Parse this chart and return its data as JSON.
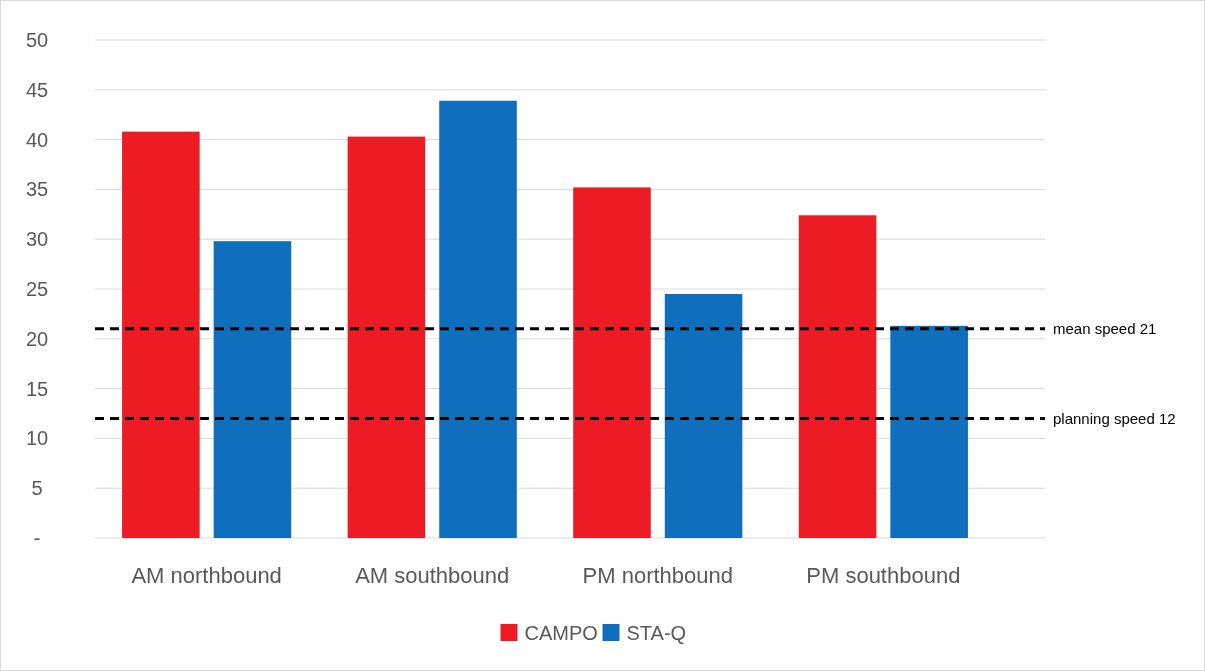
{
  "chart_data": {
    "type": "bar",
    "categories": [
      "AM northbound",
      "AM southbound",
      "PM northbound",
      "PM southbound"
    ],
    "series": [
      {
        "name": "CAMPO",
        "color": "#ed1c24",
        "values": [
          40.8,
          40.3,
          35.2,
          32.4
        ]
      },
      {
        "name": "STA-Q",
        "color": "#0f6fbd",
        "values": [
          29.8,
          43.9,
          24.5,
          21.3
        ]
      }
    ],
    "ylim": [
      0,
      50
    ],
    "yticks": [
      {
        "value": 0,
        "label": "-"
      },
      5,
      10,
      15,
      20,
      25,
      30,
      35,
      40,
      45,
      50
    ],
    "grid": "y",
    "legend": "bottom",
    "ref_lines": [
      {
        "axis": "y",
        "value": 21,
        "label": "mean speed 21",
        "color": "#000000",
        "line_style": "dashed"
      },
      {
        "axis": "y",
        "value": 12,
        "label": "planning speed 12",
        "color": "#000000",
        "line_style": "dashed"
      }
    ]
  }
}
